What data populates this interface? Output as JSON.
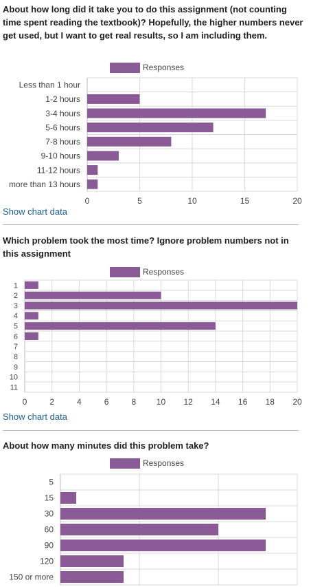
{
  "show_chart_data_label": "Show chart data",
  "colors": {
    "bar": "#8a5a96",
    "grid": "#d9d9d9",
    "axis": "#bbbbbb",
    "text": "#444444"
  },
  "questions": [
    {
      "title": "About how long did it take you to do this assignment (not counting time spent reading the textbook)? Hopefully, the higher numbers never get used, but I want to get real results, so I am including them.",
      "legend": "Responses"
    },
    {
      "title": "Which problem took the most time? Ignore problem numbers not in this assignment",
      "legend": "Responses"
    },
    {
      "title": "About how many minutes did this problem take?",
      "legend": "Responses"
    }
  ],
  "chart_data": [
    {
      "type": "bar",
      "orientation": "horizontal",
      "legend_position": "top-center",
      "series": [
        {
          "name": "Responses",
          "values": [
            0,
            5,
            17,
            12,
            8,
            3,
            1,
            1
          ]
        }
      ],
      "categories": [
        "Less than 1 hour",
        "1-2 hours",
        "3-4 hours",
        "5-6 hours",
        "7-8 hours",
        "9-10 hours",
        "11-12 hours",
        "more than 13 hours"
      ],
      "xlim": [
        0,
        20
      ],
      "xticks": [
        0,
        5,
        10,
        15,
        20
      ],
      "grid": true
    },
    {
      "type": "bar",
      "orientation": "horizontal",
      "legend_position": "top-center",
      "series": [
        {
          "name": "Responses",
          "values": [
            1,
            10,
            20,
            1,
            14,
            1,
            0,
            0,
            0,
            0,
            0
          ]
        }
      ],
      "categories": [
        "1",
        "2",
        "3",
        "4",
        "5",
        "6",
        "7",
        "8",
        "9",
        "10",
        "11"
      ],
      "xlim": [
        0,
        20
      ],
      "xticks": [
        0,
        2,
        4,
        6,
        8,
        10,
        12,
        14,
        16,
        18,
        20
      ],
      "grid": true
    },
    {
      "type": "bar",
      "orientation": "horizontal",
      "legend_position": "top-center",
      "series": [
        {
          "name": "Responses",
          "values": [
            0,
            1,
            13,
            10,
            13,
            4,
            4
          ]
        }
      ],
      "categories": [
        "5",
        "15",
        "30",
        "60",
        "90",
        "120",
        "150 or more"
      ],
      "xlim": [
        0,
        15
      ],
      "xticks": [
        0,
        5,
        10,
        15
      ],
      "grid": true
    }
  ]
}
